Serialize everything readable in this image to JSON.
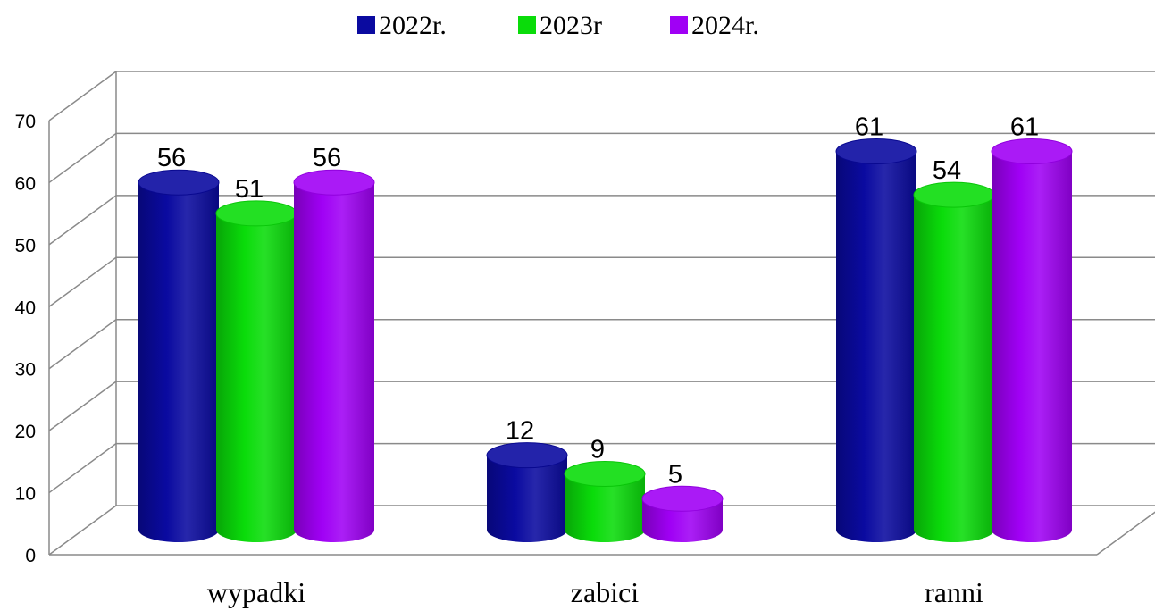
{
  "chart_data": {
    "type": "bar",
    "style": "3d-cylinder",
    "categories": [
      "wypadki",
      "zabici",
      "ranni"
    ],
    "series": [
      {
        "name": "2022r.",
        "color": "#0A0AA0",
        "values": [
          56,
          12,
          61
        ]
      },
      {
        "name": "2023r",
        "color": "#0ADC0A",
        "values": [
          51,
          9,
          54
        ]
      },
      {
        "name": "2024r.",
        "color": "#A000F5",
        "values": [
          56,
          5,
          61
        ]
      }
    ],
    "y_ticks": [
      "0",
      "10",
      "20",
      "30",
      "40",
      "50",
      "60",
      "70"
    ],
    "ylim": [
      0,
      70
    ],
    "grid": true,
    "legend_position": "top-center",
    "title": "",
    "xlabel": "",
    "ylabel": ""
  }
}
